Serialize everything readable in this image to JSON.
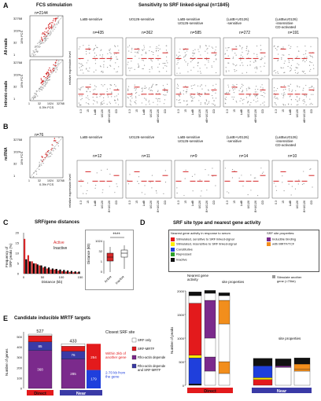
{
  "panel_A": {
    "label": "A",
    "fcs_title": "FCS stimulation",
    "sens_title": "Sensitivity to SRF linked-signal (n=1845)",
    "row_labels": [
      "All-reads",
      "Intronic-reads"
    ],
    "scatter_n": "n=2144",
    "scatter_ylabel": "15% FCS",
    "scatter_xlabel": "0.3% FCS",
    "scatter_ticks": [
      "32768",
      "1024",
      "32",
      "1"
    ],
    "scatter_xticks": [
      "1",
      "32",
      "1024",
      "32768"
    ],
    "ylabel": "relative expression level",
    "groups": [
      {
        "title": "LatB-sensitive",
        "n": "n=435"
      },
      {
        "title": "U0126-sensitive",
        "n": "n=362"
      },
      {
        "title": "LatB-sensitive\nU0126-sensitive",
        "n": "n=585"
      },
      {
        "title": "(LatB+U0126)\n-sensitive",
        "n": "n=272"
      },
      {
        "title": "(LatB±U0126)\n-insensitive\nCD-activated",
        "n": "n=191"
      }
    ],
    "x_ticks": [
      "0.3",
      "15",
      "LatB",
      "U0126",
      "LatB+U0126",
      "CD"
    ]
  },
  "panel_B": {
    "label": "B",
    "scatter_n": "n=76",
    "row_label": "ncRNA",
    "scatter_ylabel": "15% FCS",
    "scatter_xlabel": "0.3% FCS",
    "scatter_ticks": [
      "32768",
      "1024",
      "32",
      "1"
    ],
    "scatter_xticks": [
      "1",
      "32",
      "1024",
      "32768"
    ],
    "ylabel": "relative expression level",
    "groups": [
      {
        "title": "LatB-sensitive",
        "n": "n=12"
      },
      {
        "title": "U0126-sensitive",
        "n": "n=11"
      },
      {
        "title": "LatB-sensitive\nU0126-sensitive",
        "n": "n=9"
      },
      {
        "title": "(LatB+U0126)\n-sensitive",
        "n": "n=14"
      },
      {
        "title": "(LatB±U0126)\n-insensitive\nCD-activated",
        "n": "n=10"
      }
    ],
    "x_ticks": [
      "0.3",
      "15",
      "LatB",
      "U0126",
      "LatB+U0126",
      "CD"
    ]
  },
  "panel_C": {
    "label": "C",
    "title": "SRF/gene distances",
    "legend": [
      "Active",
      "Inactive"
    ],
    "hist_ylabel": "Frequency of\nSRF peaks (%)",
    "hist_xlabel": "Distance (kb)",
    "hist_yticks": [
      "0",
      "5",
      "10",
      "15",
      "20"
    ],
    "hist_xticks": [
      "0",
      "50",
      "100",
      "150"
    ],
    "box_ylabel": "Distance (kb)",
    "box_yticks": [
      "1024",
      "32",
      "1",
      "0"
    ],
    "box_xticks": [
      "Active",
      "Inactive"
    ],
    "signif": "****",
    "colors": {
      "active": "#d62728",
      "inactive": "#000000"
    },
    "chart_data": {
      "type": "bar",
      "x_label": "Distance (kb)",
      "y_label": "Frequency of SRF peaks (%)",
      "ylim": [
        0,
        20
      ],
      "xlim": [
        0,
        150
      ],
      "series": [
        {
          "name": "Active",
          "x": [
            5,
            15,
            25,
            35,
            45,
            55,
            65,
            75,
            85,
            95,
            105,
            115,
            125,
            135,
            145
          ],
          "values": [
            17,
            9,
            6,
            5,
            4,
            3,
            2.5,
            2,
            2,
            1.5,
            1.2,
            1,
            0.8,
            0.7,
            0.6
          ]
        },
        {
          "name": "Inactive",
          "x": [
            5,
            15,
            25,
            35,
            45,
            55,
            65,
            75,
            85,
            95,
            105,
            115,
            125,
            135,
            145
          ],
          "values": [
            7,
            6,
            5,
            4.5,
            4,
            3.5,
            3,
            2.5,
            2.3,
            2,
            1.8,
            1.5,
            1.3,
            1.1,
            1
          ]
        }
      ]
    }
  },
  "panel_D": {
    "label": "D",
    "title": "SRF site type and nearest gene activity",
    "legend_title_left": "Nearest gene activity in response to serum",
    "legend_left": [
      {
        "label": "Stimulated, sensitive to SRF linked-signal",
        "color": "#e31a1c"
      },
      {
        "label": "Stimulated, insensitive to SRF linked-signal",
        "color": "#ffed00"
      },
      {
        "label": "Constitutive",
        "color": "#1f3fdc"
      },
      {
        "label": "Repressed",
        "color": "#2ca02c"
      },
      {
        "label": "Inactive",
        "color": "#111111"
      }
    ],
    "legend_title_right": "SRF site properties:",
    "legend_right": [
      {
        "label": "Inducible binding",
        "color": "#7b2a8c"
      },
      {
        "label": "with MRTF/TCF",
        "color": "#f28e1c"
      }
    ],
    "col_header_1": "Nearest gene\nactivity",
    "col_header_2": "site properties",
    "col_header_3": "site properties",
    "stim_note": "Stimulate another\ngene (<70kb)",
    "ylabel": "Number of peaks",
    "yticks": [
      "2000",
      "1500",
      "1000",
      "500",
      "0"
    ],
    "groups": [
      "Direct",
      "Near"
    ],
    "chart_data": {
      "type": "bar",
      "categories": [
        "Direct: activity",
        "Direct: inducible",
        "Direct: MRTF/TCF",
        "Near: activity",
        "Near: inducible",
        "Near: MRTF/TCF"
      ],
      "y_label": "Number of peaks",
      "ylim": [
        0,
        2000
      ]
    }
  },
  "panel_E": {
    "label": "E",
    "title": "Candidate inducible MRTF targets",
    "ylabel": "Number of genes",
    "yticks": [
      "500",
      "400",
      "300",
      "200",
      "100",
      "0"
    ],
    "closest_title": "Closest SRF site",
    "legend": [
      {
        "label": "SRF only",
        "color": "#ffffff"
      },
      {
        "label": "SRF-MRTF",
        "color": "#e31a1c"
      },
      {
        "label": "Rho-actin dependent",
        "color": "#7b2a8c"
      },
      {
        "label": "Rho-actin dependent\nand SRF-MRTF",
        "color": "#3a3aa6"
      }
    ],
    "annot_1": "2-70 kb from\nthe gene",
    "annot_2": "Within 2kb of\nanother gene",
    "chart_data": {
      "type": "bar",
      "categories": [
        "Direct",
        "Near"
      ],
      "totals": [
        527,
        433
      ],
      "series": [
        {
          "name": "Rho-actin dependent",
          "values": [
            368,
            285
          ]
        },
        {
          "name": "Rho-actin dependent and SRF-MRTF",
          "values": [
            85,
            76
          ]
        },
        {
          "name": "SRF-MRTF",
          "values": [
            59,
            49
          ]
        },
        {
          "name": "SRF only",
          "values": [
            15,
            23
          ]
        }
      ],
      "near_split": {
        "gene_2_70kb": 179,
        "within_2kb_other": 254
      },
      "ylabel": "Number of genes",
      "ylim": [
        0,
        550
      ]
    }
  }
}
